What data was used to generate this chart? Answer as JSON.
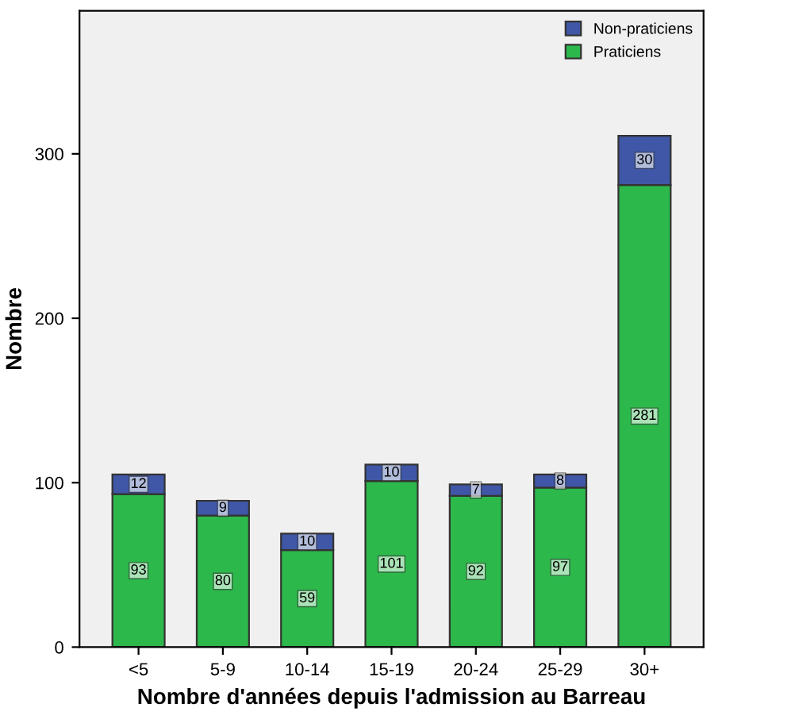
{
  "chart_data": {
    "type": "bar",
    "stacked": true,
    "xlabel": "Nombre d'années depuis l'admission au Barreau",
    "ylabel": "Nombre",
    "categories": [
      "<5",
      "5-9",
      "10-14",
      "15-19",
      "20-24",
      "25-29",
      "30+"
    ],
    "series": [
      {
        "name": "Praticiens",
        "color": "#2db84b",
        "values": [
          93,
          80,
          59,
          101,
          92,
          97,
          281
        ]
      },
      {
        "name": "Non-praticiens",
        "color": "#3f57a6",
        "values": [
          12,
          9,
          10,
          10,
          7,
          8,
          30
        ]
      }
    ],
    "ylim": [
      0,
      387
    ],
    "yticks": [
      0,
      100,
      200,
      300
    ],
    "data_labels": true,
    "legend": "top right",
    "grid": false
  }
}
